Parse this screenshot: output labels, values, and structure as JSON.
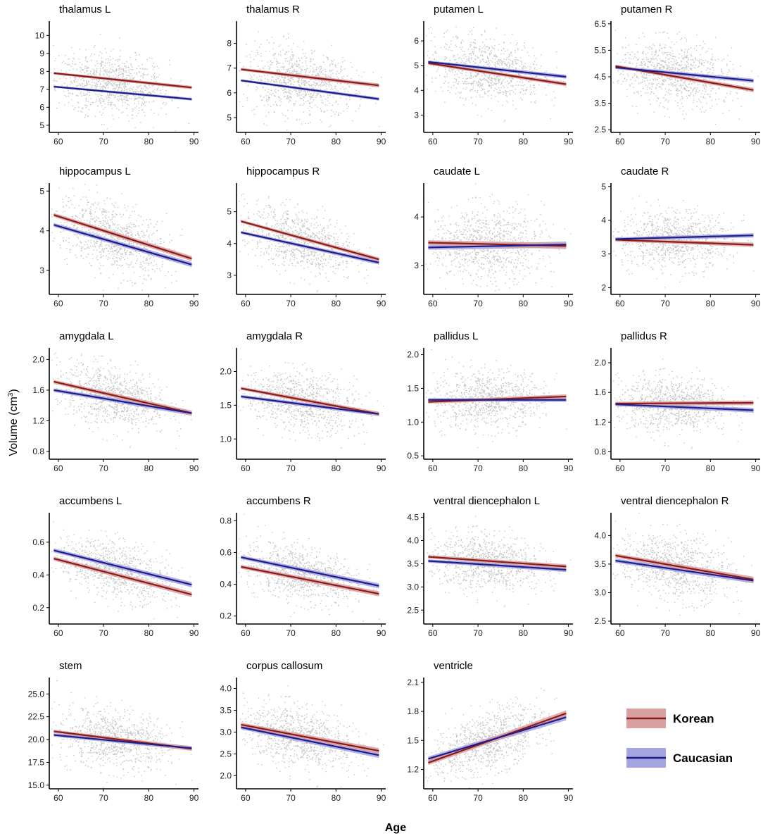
{
  "figure": {
    "xlabel": "Age",
    "ylabel_text": "Volume (cm",
    "ylabel_sup": "3",
    "ylabel_close": ")"
  },
  "legend": [
    {
      "name": "Korean",
      "line_color": "#8b1a1a",
      "band_color": "#d9a0a0"
    },
    {
      "name": "Caucasian",
      "line_color": "#1c1c8c",
      "band_color": "#a4a4e0"
    }
  ],
  "chart_data": [
    {
      "type": "scatter",
      "title": "thalamus L",
      "xlim": [
        58,
        91
      ],
      "ylim": [
        4.6,
        10.8
      ],
      "xticks": [
        60,
        70,
        80,
        90
      ],
      "yticks": [
        "5",
        "6",
        "7",
        "8",
        "9",
        "10"
      ],
      "cloud": {
        "center": 7.3,
        "spread": 1.0
      },
      "series": [
        {
          "name": "Korean",
          "start": 7.9,
          "end": 7.1,
          "se": 0.06
        },
        {
          "name": "Caucasian",
          "start": 7.15,
          "end": 6.45,
          "se": 0.05
        }
      ]
    },
    {
      "type": "scatter",
      "title": "thalamus R",
      "xlim": [
        58,
        91
      ],
      "ylim": [
        4.4,
        8.9
      ],
      "xticks": [
        60,
        70,
        80,
        90
      ],
      "yticks": [
        "5",
        "6",
        "7",
        "8"
      ],
      "cloud": {
        "center": 6.6,
        "spread": 0.75
      },
      "series": [
        {
          "name": "Korean",
          "start": 6.95,
          "end": 6.3,
          "se": 0.05
        },
        {
          "name": "Caucasian",
          "start": 6.5,
          "end": 5.75,
          "se": 0.04
        }
      ]
    },
    {
      "type": "scatter",
      "title": "putamen L",
      "xlim": [
        58,
        91
      ],
      "ylim": [
        2.3,
        6.8
      ],
      "xticks": [
        60,
        70,
        80,
        90
      ],
      "yticks": [
        "3",
        "4",
        "5",
        "6"
      ],
      "cloud": {
        "center": 4.8,
        "spread": 0.75
      },
      "series": [
        {
          "name": "Korean",
          "start": 5.1,
          "end": 4.25,
          "se": 0.05
        },
        {
          "name": "Caucasian",
          "start": 5.15,
          "end": 4.55,
          "se": 0.05
        }
      ]
    },
    {
      "type": "scatter",
      "title": "putamen R",
      "xlim": [
        58,
        91
      ],
      "ylim": [
        2.4,
        6.6
      ],
      "xticks": [
        60,
        70,
        80,
        90
      ],
      "yticks": [
        "2.5",
        "3.5",
        "4.5",
        "5.5",
        "6.5"
      ],
      "cloud": {
        "center": 4.55,
        "spread": 0.7
      },
      "series": [
        {
          "name": "Korean",
          "start": 4.9,
          "end": 4.0,
          "se": 0.05
        },
        {
          "name": "Caucasian",
          "start": 4.85,
          "end": 4.35,
          "se": 0.05
        }
      ]
    },
    {
      "type": "scatter",
      "title": "hippocampus L",
      "xlim": [
        58,
        91
      ],
      "ylim": [
        2.4,
        5.2
      ],
      "xticks": [
        60,
        70,
        80,
        90
      ],
      "yticks": [
        "3",
        "4",
        "5"
      ],
      "cloud": {
        "center": 3.75,
        "spread": 0.5
      },
      "series": [
        {
          "name": "Korean",
          "start": 4.4,
          "end": 3.3,
          "se": 0.04
        },
        {
          "name": "Caucasian",
          "start": 4.15,
          "end": 3.15,
          "se": 0.04
        }
      ]
    },
    {
      "type": "scatter",
      "title": "hippocampus R",
      "xlim": [
        58,
        91
      ],
      "ylim": [
        2.4,
        5.9
      ],
      "xticks": [
        60,
        70,
        80,
        90
      ],
      "yticks": [
        "3",
        "4",
        "5"
      ],
      "cloud": {
        "center": 4.0,
        "spread": 0.55
      },
      "series": [
        {
          "name": "Korean",
          "start": 4.7,
          "end": 3.5,
          "se": 0.04
        },
        {
          "name": "Caucasian",
          "start": 4.35,
          "end": 3.4,
          "se": 0.04
        }
      ]
    },
    {
      "type": "scatter",
      "title": "caudate L",
      "xlim": [
        58,
        91
      ],
      "ylim": [
        2.4,
        4.7
      ],
      "xticks": [
        60,
        70,
        80,
        90
      ],
      "yticks": [
        "3",
        "4"
      ],
      "cloud": {
        "center": 3.4,
        "spread": 0.45
      },
      "series": [
        {
          "name": "Korean",
          "start": 3.47,
          "end": 3.4,
          "se": 0.04
        },
        {
          "name": "Caucasian",
          "start": 3.37,
          "end": 3.43,
          "se": 0.04
        }
      ]
    },
    {
      "type": "scatter",
      "title": "caudate R",
      "xlim": [
        58,
        91
      ],
      "ylim": [
        1.8,
        5.1
      ],
      "xticks": [
        60,
        70,
        80,
        90
      ],
      "yticks": [
        "2",
        "3",
        "4",
        "5"
      ],
      "cloud": {
        "center": 3.4,
        "spread": 0.5
      },
      "series": [
        {
          "name": "Korean",
          "start": 3.42,
          "end": 3.27,
          "se": 0.04
        },
        {
          "name": "Caucasian",
          "start": 3.44,
          "end": 3.55,
          "se": 0.04
        }
      ]
    },
    {
      "type": "scatter",
      "title": "amygdala L",
      "xlim": [
        58,
        91
      ],
      "ylim": [
        0.7,
        2.15
      ],
      "xticks": [
        60,
        70,
        80,
        90
      ],
      "yticks": [
        "0.8",
        "1.2",
        "1.6",
        "2.0"
      ],
      "cloud": {
        "center": 1.5,
        "spread": 0.23
      },
      "series": [
        {
          "name": "Korean",
          "start": 1.71,
          "end": 1.3,
          "se": 0.02
        },
        {
          "name": "Caucasian",
          "start": 1.6,
          "end": 1.3,
          "se": 0.02
        }
      ]
    },
    {
      "type": "scatter",
      "title": "amygdala R",
      "xlim": [
        58,
        91
      ],
      "ylim": [
        0.7,
        2.35
      ],
      "xticks": [
        60,
        70,
        80,
        90
      ],
      "yticks": [
        "1.0",
        "1.5",
        "2.0"
      ],
      "cloud": {
        "center": 1.55,
        "spread": 0.25
      },
      "series": [
        {
          "name": "Korean",
          "start": 1.75,
          "end": 1.37,
          "se": 0.02
        },
        {
          "name": "Caucasian",
          "start": 1.63,
          "end": 1.37,
          "se": 0.02
        }
      ]
    },
    {
      "type": "scatter",
      "title": "pallidus L",
      "xlim": [
        58,
        91
      ],
      "ylim": [
        0.45,
        2.1
      ],
      "xticks": [
        60,
        70,
        80,
        90
      ],
      "yticks": [
        "0.5",
        "1.0",
        "1.5",
        "2.0"
      ],
      "cloud": {
        "center": 1.35,
        "spread": 0.25
      },
      "series": [
        {
          "name": "Korean",
          "start": 1.3,
          "end": 1.38,
          "se": 0.02
        },
        {
          "name": "Caucasian",
          "start": 1.33,
          "end": 1.33,
          "se": 0.02
        }
      ]
    },
    {
      "type": "scatter",
      "title": "pallidus R",
      "xlim": [
        58,
        91
      ],
      "ylim": [
        0.7,
        2.2
      ],
      "xticks": [
        60,
        70,
        80,
        90
      ],
      "yticks": [
        "0.8",
        "1.2",
        "1.6",
        "2.0"
      ],
      "cloud": {
        "center": 1.45,
        "spread": 0.22
      },
      "series": [
        {
          "name": "Korean",
          "start": 1.45,
          "end": 1.46,
          "se": 0.02
        },
        {
          "name": "Caucasian",
          "start": 1.44,
          "end": 1.36,
          "se": 0.02
        }
      ]
    },
    {
      "type": "scatter",
      "title": "accumbens L",
      "xlim": [
        58,
        91
      ],
      "ylim": [
        0.1,
        0.78
      ],
      "xticks": [
        60,
        70,
        80,
        90
      ],
      "yticks": [
        "0.2",
        "0.4",
        "0.6"
      ],
      "cloud": {
        "center": 0.43,
        "spread": 0.1
      },
      "series": [
        {
          "name": "Korean",
          "start": 0.5,
          "end": 0.28,
          "se": 0.01
        },
        {
          "name": "Caucasian",
          "start": 0.55,
          "end": 0.34,
          "se": 0.01
        }
      ]
    },
    {
      "type": "scatter",
      "title": "accumbens R",
      "xlim": [
        58,
        91
      ],
      "ylim": [
        0.15,
        0.85
      ],
      "xticks": [
        60,
        70,
        80,
        90
      ],
      "yticks": [
        "0.2",
        "0.4",
        "0.6",
        "0.8"
      ],
      "cloud": {
        "center": 0.45,
        "spread": 0.1
      },
      "series": [
        {
          "name": "Korean",
          "start": 0.51,
          "end": 0.34,
          "se": 0.01
        },
        {
          "name": "Caucasian",
          "start": 0.57,
          "end": 0.39,
          "se": 0.01
        }
      ]
    },
    {
      "type": "scatter",
      "title": "ventral diencephalon L",
      "xlim": [
        58,
        91
      ],
      "ylim": [
        2.2,
        4.6
      ],
      "xticks": [
        60,
        70,
        80,
        90
      ],
      "yticks": [
        "2.5",
        "3.0",
        "3.5",
        "4.0",
        "4.5"
      ],
      "cloud": {
        "center": 3.5,
        "spread": 0.35
      },
      "series": [
        {
          "name": "Korean",
          "start": 3.65,
          "end": 3.44,
          "se": 0.03
        },
        {
          "name": "Caucasian",
          "start": 3.56,
          "end": 3.37,
          "se": 0.03
        }
      ]
    },
    {
      "type": "scatter",
      "title": "ventral diencephalon R",
      "xlim": [
        58,
        91
      ],
      "ylim": [
        2.45,
        4.4
      ],
      "xticks": [
        60,
        70,
        80,
        90
      ],
      "yticks": [
        "2.5",
        "3.0",
        "3.5",
        "4.0"
      ],
      "cloud": {
        "center": 3.4,
        "spread": 0.33
      },
      "series": [
        {
          "name": "Korean",
          "start": 3.65,
          "end": 3.23,
          "se": 0.03
        },
        {
          "name": "Caucasian",
          "start": 3.56,
          "end": 3.21,
          "se": 0.03
        }
      ]
    },
    {
      "type": "scatter",
      "title": "stem",
      "xlim": [
        58,
        91
      ],
      "ylim": [
        14.6,
        26.8
      ],
      "xticks": [
        60,
        70,
        80,
        90
      ],
      "yticks": [
        "15.0",
        "17.5",
        "20.0",
        "22.5",
        "25.0"
      ],
      "cloud": {
        "center": 20.0,
        "spread": 1.9
      },
      "series": [
        {
          "name": "Korean",
          "start": 20.9,
          "end": 19.0,
          "se": 0.15
        },
        {
          "name": "Caucasian",
          "start": 20.5,
          "end": 19.05,
          "se": 0.15
        }
      ]
    },
    {
      "type": "scatter",
      "title": "corpus callosum",
      "xlim": [
        58,
        91
      ],
      "ylim": [
        1.7,
        4.25
      ],
      "xticks": [
        60,
        70,
        80,
        90
      ],
      "yticks": [
        "2.0",
        "2.5",
        "3.0",
        "3.5",
        "4.0"
      ],
      "cloud": {
        "center": 2.85,
        "spread": 0.4
      },
      "series": [
        {
          "name": "Korean",
          "start": 3.17,
          "end": 2.57,
          "se": 0.04
        },
        {
          "name": "Caucasian",
          "start": 3.11,
          "end": 2.47,
          "se": 0.04
        }
      ]
    },
    {
      "type": "scatter",
      "title": "ventricle",
      "xlim": [
        58,
        91
      ],
      "ylim": [
        1.0,
        2.15
      ],
      "xticks": [
        60,
        70,
        80,
        90
      ],
      "yticks": [
        "1.2",
        "1.5",
        "1.8",
        "2.1"
      ],
      "cloud": {
        "center": 1.52,
        "spread": 0.18
      },
      "series": [
        {
          "name": "Korean",
          "start": 1.27,
          "end": 1.78,
          "se": 0.02
        },
        {
          "name": "Caucasian",
          "start": 1.31,
          "end": 1.74,
          "se": 0.02
        }
      ]
    }
  ]
}
